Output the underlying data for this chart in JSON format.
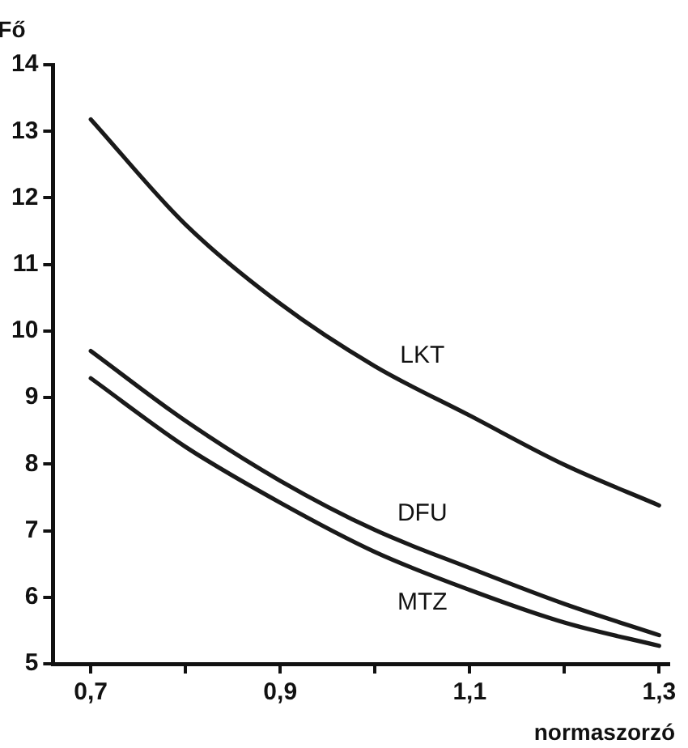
{
  "chart_data": {
    "type": "line",
    "xlabel": "normaszorzó",
    "ylabel": "Fő",
    "x": [
      0.7,
      0.8,
      0.9,
      1.0,
      1.1,
      1.2,
      1.3
    ],
    "xlim": [
      0.66,
      1.31
    ],
    "xticks": [
      {
        "value": 0.7,
        "label": "0,7"
      },
      {
        "value": 0.8,
        "label": null
      },
      {
        "value": 0.9,
        "label": "0,9"
      },
      {
        "value": 1.0,
        "label": null
      },
      {
        "value": 1.1,
        "label": "1,1"
      },
      {
        "value": 1.2,
        "label": null
      },
      {
        "value": 1.3,
        "label": "1,3"
      }
    ],
    "ylim": [
      5,
      14
    ],
    "yticks": [
      5,
      6,
      7,
      8,
      9,
      10,
      11,
      12,
      13,
      14
    ],
    "grid": false,
    "legend": false,
    "marker": "none",
    "line_style": "solid",
    "series": [
      {
        "name": "LKT",
        "color": "#1a1a1a",
        "values": [
          13.18,
          11.6,
          10.41,
          9.47,
          8.73,
          7.99,
          7.38
        ]
      },
      {
        "name": "DFU",
        "color": "#1a1a1a",
        "values": [
          9.7,
          8.65,
          7.75,
          7.01,
          6.44,
          5.9,
          5.43
        ]
      },
      {
        "name": "MTZ",
        "color": "#1a1a1a",
        "values": [
          9.29,
          8.26,
          7.42,
          6.68,
          6.11,
          5.62,
          5.27
        ]
      }
    ]
  }
}
